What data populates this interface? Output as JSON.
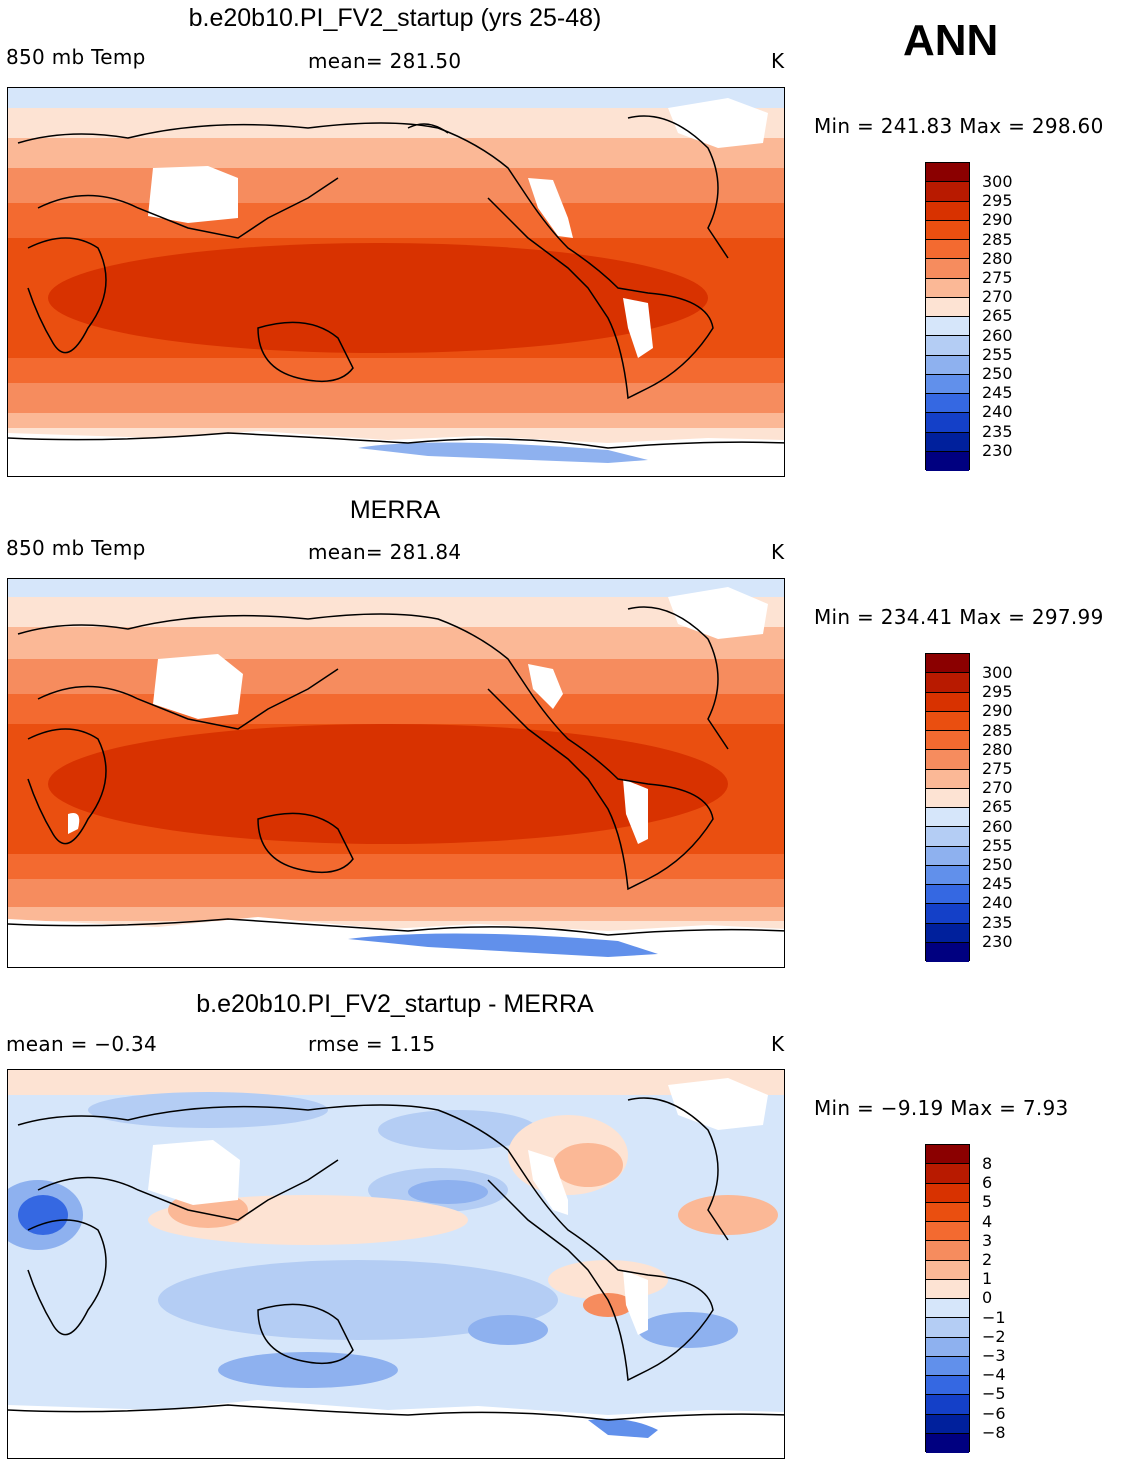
{
  "season": "ANN",
  "panels": [
    {
      "title": "b.e20b10.PI_FV2_startup (yrs 25-48)",
      "variable": "850 mb Temp",
      "stat": "mean=  281.50",
      "units": "K",
      "minmax": "Min =  241.83 Max =  298.60",
      "levels": [
        "300",
        "295",
        "290",
        "285",
        "280",
        "275",
        "270",
        "265",
        "260",
        "255",
        "250",
        "245",
        "240",
        "235",
        "230"
      ]
    },
    {
      "title": "MERRA",
      "variable": "850 mb Temp",
      "stat": "mean=  281.84",
      "units": "K",
      "minmax": "Min =  234.41 Max =  297.99",
      "levels": [
        "300",
        "295",
        "290",
        "285",
        "280",
        "275",
        "270",
        "265",
        "260",
        "255",
        "250",
        "245",
        "240",
        "235",
        "230"
      ]
    },
    {
      "title": "b.e20b10.PI_FV2_startup - MERRA",
      "variable": "mean =   −0.34",
      "stat": "rmse =    1.15",
      "units": "K",
      "minmax": "Min =   −9.19 Max =    7.93",
      "levels": [
        "8",
        "6",
        "5",
        "4",
        "3",
        "2",
        "1",
        "0",
        "−1",
        "−2",
        "−3",
        "−4",
        "−5",
        "−6",
        "−8"
      ]
    }
  ],
  "colors": {
    "temp_scale": [
      "#8b0000",
      "#b81a00",
      "#d83200",
      "#ea4f10",
      "#f36a30",
      "#f68c5e",
      "#fbb896",
      "#fde3d3",
      "#d6e6fa",
      "#b4cdf4",
      "#8eb1ef",
      "#6190eb",
      "#3568e2",
      "#1440c8",
      "#00209c",
      "#000080"
    ],
    "diff_scale": [
      "#8b0000",
      "#b81a00",
      "#d83200",
      "#ea4f10",
      "#f36a30",
      "#f68c5e",
      "#fbb896",
      "#fde3d3",
      "#d6e6fa",
      "#b4cdf4",
      "#8eb1ef",
      "#6190eb",
      "#3568e2",
      "#1440c8",
      "#00209c",
      "#000080"
    ]
  }
}
